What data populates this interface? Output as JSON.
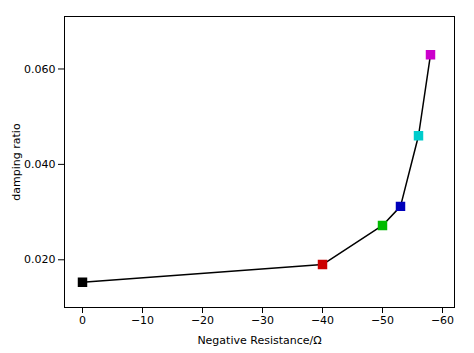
{
  "chart_data": {
    "type": "line",
    "x": [
      0,
      -40,
      -50,
      -53,
      -56,
      -58
    ],
    "values": [
      0.0153,
      0.019,
      0.0272,
      0.0312,
      0.046,
      0.063
    ],
    "color": "#000000",
    "colors": [
      "#000000",
      "#cc0000",
      "#00bb00",
      "#0000bb",
      "#00cccc",
      "#cc00cc"
    ],
    "marker": "square",
    "xlabel": "Negative Resistance/Ω",
    "ylabel": "damping ratio",
    "xlim": [
      3,
      -62
    ],
    "ylim": [
      0.01,
      0.071
    ],
    "xticks": [
      0,
      -10,
      -20,
      -30,
      -40,
      -50,
      -60
    ],
    "yticks": [
      0.02,
      0.04,
      0.06
    ]
  }
}
